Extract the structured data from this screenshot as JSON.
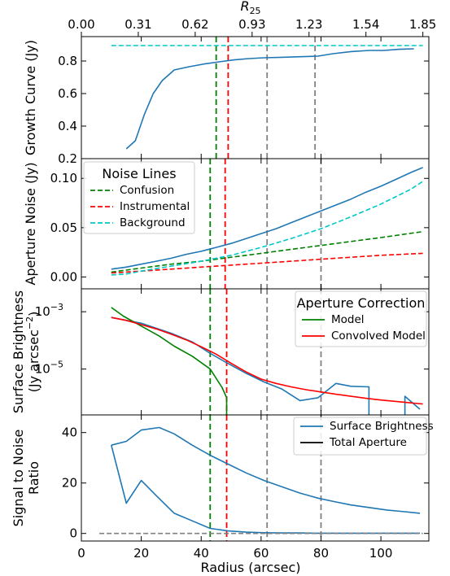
{
  "figure": {
    "xlabel": "Radius (arcsec)",
    "top_axis_label": "R",
    "top_axis_sub": "25",
    "top_ticks": [
      "0.00",
      "0.31",
      "0.62",
      "0.93",
      "1.23",
      "1.54",
      "1.85"
    ],
    "x_ticks": [
      "0",
      "20",
      "40",
      "60",
      "80",
      "100"
    ],
    "xlim": [
      0,
      116
    ],
    "top_axis_max_radius": 114,
    "colors": {
      "blue": "#1f77b4",
      "green": "#008000",
      "red": "#ff0000",
      "cyan": "#00c8c8",
      "gray": "#808080",
      "black": "#000000"
    }
  },
  "chart_data": [
    {
      "type": "line",
      "ylabel": "Growth Curve (Jy)",
      "ylim": [
        0.2,
        0.95
      ],
      "y_ticks": [
        {
          "v": 0.2,
          "t": "0.2"
        },
        {
          "v": 0.4,
          "t": "0.4"
        },
        {
          "v": 0.6,
          "t": "0.6"
        },
        {
          "v": 0.8,
          "t": "0.8"
        }
      ],
      "series": [
        {
          "role": "growth",
          "x": [
            15,
            18,
            21,
            24,
            27,
            31,
            36,
            41,
            46,
            51,
            56,
            61,
            67,
            72,
            79,
            84,
            90,
            96,
            101,
            106,
            111
          ],
          "y": [
            0.26,
            0.31,
            0.47,
            0.6,
            0.68,
            0.745,
            0.765,
            0.782,
            0.795,
            0.807,
            0.815,
            0.82,
            0.823,
            0.826,
            0.83,
            0.845,
            0.858,
            0.865,
            0.865,
            0.872,
            0.875
          ]
        },
        {
          "role": "total_flux",
          "x": [
            10,
            114
          ],
          "y": [
            0.895,
            0.895
          ]
        }
      ],
      "vlines": [
        {
          "x": 45,
          "color": "green"
        },
        {
          "x": 49,
          "color": "red"
        },
        {
          "x": 62,
          "color": "gray"
        },
        {
          "x": 78,
          "color": "gray"
        }
      ]
    },
    {
      "type": "line",
      "ylabel": "Aperture Noise (Jy)",
      "ylim": [
        -0.012,
        0.12
      ],
      "y_ticks": [
        {
          "v": 0,
          "t": "0.00"
        },
        {
          "v": 0.05,
          "t": "0.05"
        },
        {
          "v": 0.1,
          "t": "0.10"
        }
      ],
      "legend": {
        "title": "Noise Lines",
        "entries": [
          "Confusion",
          "Instrumental",
          "Background"
        ]
      },
      "series": [
        {
          "role": "total",
          "x": [
            10,
            15,
            20,
            25,
            30,
            35,
            40,
            45,
            50,
            55,
            60,
            65,
            70,
            75,
            80,
            85,
            90,
            95,
            100,
            105,
            110,
            114
          ],
          "y": [
            0.008,
            0.01,
            0.013,
            0.016,
            0.019,
            0.023,
            0.026,
            0.03,
            0.034,
            0.039,
            0.044,
            0.049,
            0.055,
            0.061,
            0.067,
            0.073,
            0.079,
            0.086,
            0.092,
            0.099,
            0.106,
            0.111
          ]
        },
        {
          "role": "confusion",
          "x": [
            10,
            20,
            30,
            40,
            50,
            60,
            70,
            80,
            90,
            100,
            114
          ],
          "y": [
            0.005,
            0.009,
            0.013,
            0.016,
            0.02,
            0.024,
            0.028,
            0.032,
            0.036,
            0.04,
            0.046
          ]
        },
        {
          "role": "instrumental",
          "x": [
            10,
            20,
            30,
            40,
            50,
            60,
            70,
            80,
            90,
            100,
            114
          ],
          "y": [
            0.004,
            0.006,
            0.008,
            0.01,
            0.012,
            0.014,
            0.016,
            0.018,
            0.02,
            0.022,
            0.024
          ]
        },
        {
          "role": "background",
          "x": [
            10,
            15,
            20,
            30,
            40,
            50,
            60,
            70,
            80,
            90,
            100,
            110,
            114
          ],
          "y": [
            0.002,
            0.003,
            0.006,
            0.011,
            0.016,
            0.022,
            0.03,
            0.039,
            0.049,
            0.061,
            0.074,
            0.089,
            0.097
          ]
        }
      ],
      "vlines": [
        {
          "x": 43,
          "color": "green"
        },
        {
          "x": 48,
          "color": "red"
        },
        {
          "x": 62,
          "color": "gray"
        },
        {
          "x": 80,
          "color": "gray"
        }
      ]
    },
    {
      "type": "line",
      "log_y": true,
      "ylabel": "Surface Brightness",
      "ylabel2": "(Jy arcsec",
      "ylabel2_sup": "−2",
      "ylabel2_end": ")",
      "ylim_log10": [
        -6.6,
        -2.2
      ],
      "y_ticks": [
        {
          "v": -3,
          "t": "10",
          "sup": "−3"
        },
        {
          "v": -5,
          "t": "10",
          "sup": "−5"
        }
      ],
      "legend": {
        "title": "Aperture Correction",
        "entries": [
          "Model",
          "Convolved Model"
        ]
      },
      "series": [
        {
          "role": "sb",
          "x": [
            10,
            20,
            30,
            37,
            43,
            48,
            55,
            61,
            67,
            73,
            79,
            85,
            90,
            96,
            96,
            108,
            108,
            113
          ],
          "y": [
            -3.2,
            -3.4,
            -3.75,
            -4.05,
            -4.45,
            -4.75,
            -5.15,
            -5.45,
            -5.7,
            -6.1,
            -6.0,
            -5.5,
            -5.6,
            -5.62,
            -7.2,
            -7.2,
            -5.95,
            -6.4
          ]
        },
        {
          "role": "model",
          "x": [
            10,
            14,
            20,
            26,
            31,
            37,
            43,
            47,
            48.5,
            48.5
          ],
          "y": [
            -2.85,
            -3.15,
            -3.5,
            -3.85,
            -4.2,
            -4.55,
            -5.0,
            -5.65,
            -6.0,
            -7.5
          ]
        },
        {
          "role": "convolved",
          "x": [
            10,
            15,
            20,
            25,
            30,
            35,
            40,
            45,
            50,
            55,
            60,
            65,
            70,
            75,
            80,
            85,
            90,
            95,
            100,
            105,
            110,
            114
          ],
          "y": [
            -3.2,
            -3.3,
            -3.45,
            -3.6,
            -3.78,
            -3.98,
            -4.22,
            -4.48,
            -4.8,
            -5.1,
            -5.35,
            -5.5,
            -5.62,
            -5.72,
            -5.8,
            -5.88,
            -5.95,
            -6.02,
            -6.08,
            -6.13,
            -6.18,
            -6.22
          ]
        }
      ],
      "vlines": [
        {
          "x": 43,
          "color": "green"
        },
        {
          "x": 48.5,
          "color": "red"
        },
        {
          "x": 62,
          "color": "gray"
        },
        {
          "x": 80,
          "color": "gray"
        }
      ]
    },
    {
      "type": "line",
      "ylabel": "Signal to Noise",
      "ylabel2": "Ratio",
      "ylim": [
        -3,
        47
      ],
      "y_ticks": [
        {
          "v": 0,
          "t": "0"
        },
        {
          "v": 20,
          "t": "20"
        },
        {
          "v": 40,
          "t": "40"
        }
      ],
      "legend": {
        "title": "",
        "entries": [
          "Surface Brightness",
          "Total Aperture"
        ]
      },
      "series": [
        {
          "role": "sb",
          "x": [
            10,
            15,
            20,
            25,
            31,
            37,
            43,
            49,
            55,
            61,
            67,
            73,
            79,
            85,
            90,
            96,
            102,
            108,
            113
          ],
          "y": [
            35,
            12,
            21,
            15,
            8,
            5,
            2,
            1,
            0.5,
            0.3,
            0.2,
            0.2,
            0.1,
            0.1,
            0.1,
            0.1,
            0.1,
            0.1,
            0.1
          ]
        },
        {
          "role": "total",
          "x": [
            10,
            15,
            20,
            26,
            31,
            37,
            43,
            49,
            55,
            61,
            67,
            73,
            79,
            85,
            90,
            96,
            102,
            108,
            113
          ],
          "y": [
            35,
            36.5,
            41,
            42,
            39.5,
            35,
            31,
            27.5,
            24,
            21,
            18.5,
            16,
            14,
            12.5,
            11.3,
            10.3,
            9.3,
            8.6,
            8
          ]
        },
        {
          "role": "zero",
          "x": [
            6,
            114
          ],
          "y": [
            0,
            0
          ]
        }
      ],
      "vlines": [
        {
          "x": 43,
          "color": "green"
        },
        {
          "x": 48.5,
          "color": "red"
        },
        {
          "x": 62,
          "color": "gray"
        },
        {
          "x": 80,
          "color": "gray"
        }
      ]
    }
  ]
}
